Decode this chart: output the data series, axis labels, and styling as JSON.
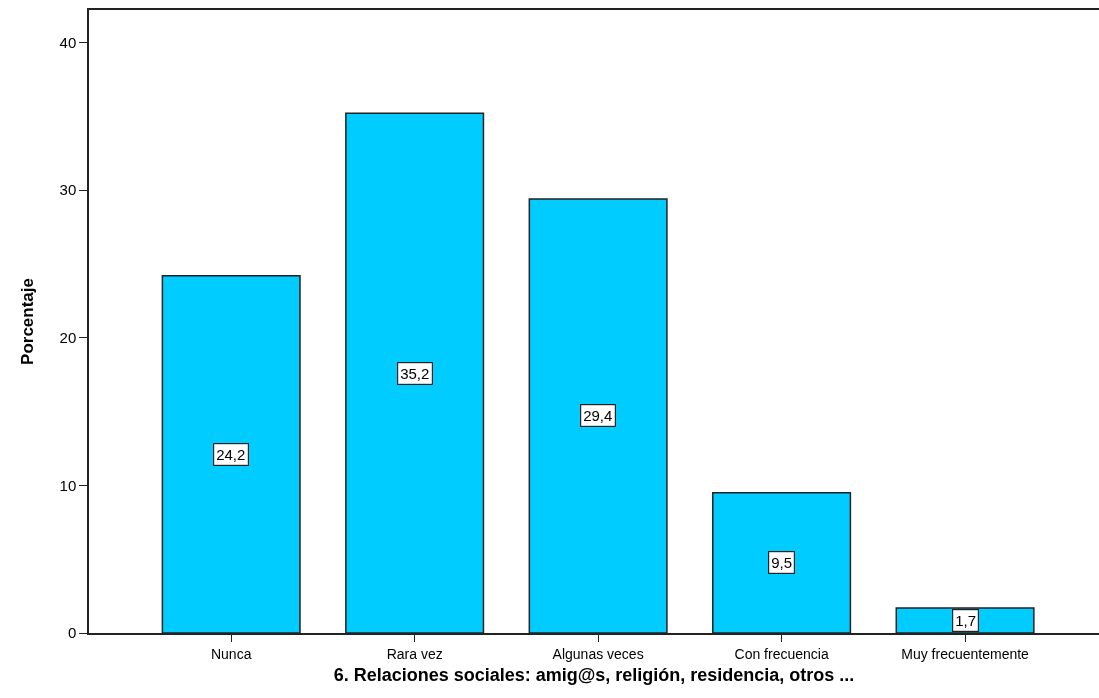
{
  "chart_data": {
    "type": "bar",
    "xlabel": "6. Relaciones sociales: amig@s, religión, residencia, otros ...",
    "ylabel": "Porcentaje",
    "categories": [
      "Nunca",
      "Rara vez",
      "Algunas veces",
      "Con frecuencia",
      "Muy frecuentemente"
    ],
    "values": [
      24.2,
      35.2,
      29.4,
      9.5,
      1.7
    ],
    "value_labels": [
      "24,2",
      "35,2",
      "29,4",
      "9,5",
      "1,7"
    ],
    "color": "#00ccff",
    "ylim": [
      0,
      42.2
    ],
    "yticks": [
      0,
      10,
      20,
      30,
      40
    ],
    "grid": false
  }
}
